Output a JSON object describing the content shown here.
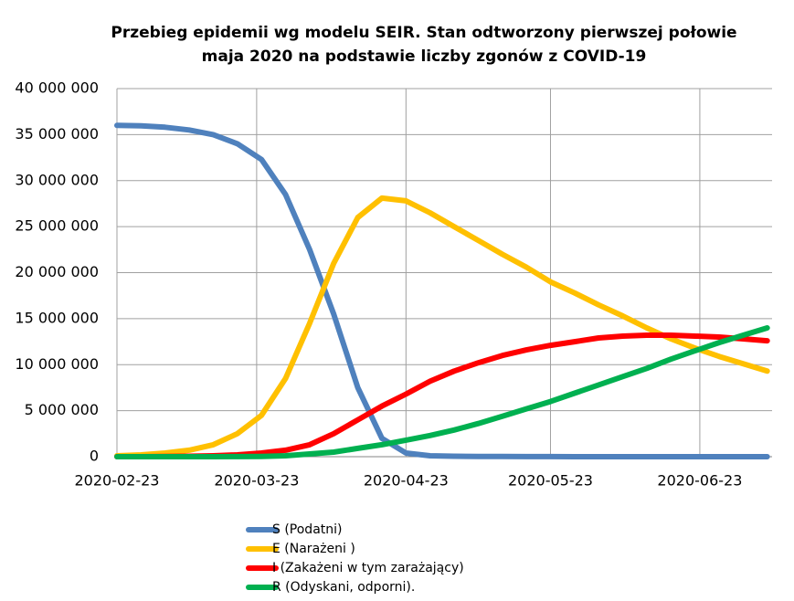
{
  "chart_data": {
    "type": "line",
    "title": [
      "Przebieg epidemii wg modelu SEIR. Stan odtworzony pierwszej połowie",
      "maja 2020 na podstawie liczby zgonów z COVID-19"
    ],
    "x": [
      "2020-02-23",
      "2020-02-28",
      "2020-03-04",
      "2020-03-09",
      "2020-03-14",
      "2020-03-19",
      "2020-03-24",
      "2020-03-29",
      "2020-04-03",
      "2020-04-08",
      "2020-04-13",
      "2020-04-18",
      "2020-04-23",
      "2020-04-28",
      "2020-05-03",
      "2020-05-08",
      "2020-05-13",
      "2020-05-18",
      "2020-05-23",
      "2020-05-28",
      "2020-06-02",
      "2020-06-07",
      "2020-06-12",
      "2020-06-17",
      "2020-06-22",
      "2020-06-27",
      "2020-07-02",
      "2020-07-07"
    ],
    "xlim": [
      "2020-02-23",
      "2020-07-08"
    ],
    "xticks": [
      "2020-02-23",
      "2020-03-23",
      "2020-04-23",
      "2020-05-23",
      "2020-06-23"
    ],
    "ylim": [
      0,
      40000000
    ],
    "yticks": [
      0,
      {
        "value": 5000000,
        "label": "5 000 000"
      },
      {
        "value": 10000000,
        "label": "10 000 000"
      },
      {
        "value": 15000000,
        "label": "15 000 000"
      },
      {
        "value": 20000000,
        "label": "20 000 000"
      },
      {
        "value": 25000000,
        "label": "25 000 000"
      },
      {
        "value": 30000000,
        "label": "30 000 000"
      },
      {
        "value": 35000000,
        "label": "35 000 000"
      },
      {
        "value": 40000000,
        "label": "40 000 000"
      }
    ],
    "grid": true,
    "legend": "bottom",
    "series": [
      {
        "name": "S (Podatni)",
        "color": "#4f81bd",
        "values": [
          36000000,
          35950000,
          35800000,
          35500000,
          35000000,
          34000000,
          32300000,
          28500000,
          22500000,
          15500000,
          7500000,
          2000000,
          400000,
          100000,
          50000,
          30000,
          20000,
          10000,
          10000,
          0,
          0,
          0,
          0,
          0,
          0,
          0,
          0,
          0
        ]
      },
      {
        "name": "E (Narażeni )",
        "color": "#ffc000",
        "values": [
          100000,
          200000,
          400000,
          700000,
          1300000,
          2500000,
          4500000,
          8500000,
          14500000,
          21000000,
          26000000,
          28100000,
          27800000,
          26500000,
          25000000,
          23500000,
          22000000,
          20600000,
          19000000,
          17800000,
          16500000,
          15300000,
          14000000,
          12800000,
          11800000,
          10900000,
          10100000,
          9300000
        ]
      },
      {
        "name": "I (Zakażeni w tym zarażający)",
        "color": "#ff0000",
        "values": [
          0,
          0,
          20000,
          50000,
          100000,
          200000,
          400000,
          700000,
          1300000,
          2500000,
          4000000,
          5500000,
          6800000,
          8200000,
          9300000,
          10200000,
          11000000,
          11600000,
          12100000,
          12500000,
          12900000,
          13100000,
          13200000,
          13200000,
          13100000,
          13000000,
          12800000,
          12600000
        ]
      },
      {
        "name": "R (Odyskani, odporni).",
        "color": "#00b050",
        "values": [
          0,
          0,
          0,
          0,
          0,
          10000,
          30000,
          100000,
          300000,
          500000,
          900000,
          1300000,
          1800000,
          2300000,
          2900000,
          3600000,
          4400000,
          5200000,
          6000000,
          6900000,
          7800000,
          8700000,
          9600000,
          10600000,
          11500000,
          12400000,
          13200000,
          14000000
        ]
      }
    ]
  }
}
